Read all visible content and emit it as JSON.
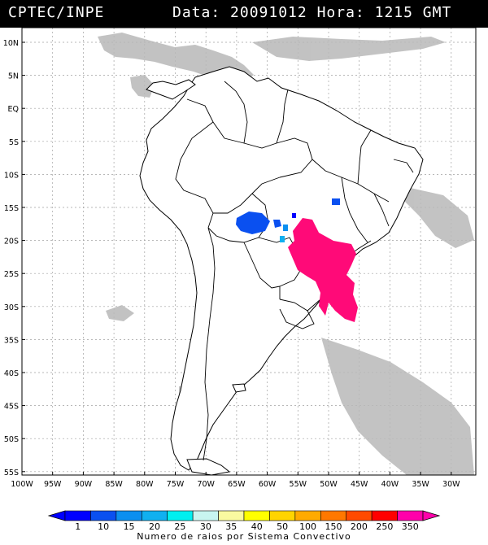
{
  "header": {
    "source": "CPTEC/INPE",
    "date_label": "Data:",
    "date": "20091012",
    "time_label": "Hora:",
    "time": "1215 GMT"
  },
  "map": {
    "lat_labels": [
      "10N",
      "5N",
      "EQ",
      "5S",
      "10S",
      "15S",
      "20S",
      "25S",
      "30S",
      "35S",
      "40S",
      "45S",
      "50S",
      "55S"
    ],
    "lon_labels": [
      "100W",
      "95W",
      "90W",
      "85W",
      "80W",
      "75W",
      "70W",
      "65W",
      "60W",
      "55W",
      "50W",
      "45W",
      "40W",
      "35W",
      "30W"
    ]
  },
  "legend": {
    "ticks": [
      "1",
      "10",
      "15",
      "20",
      "25",
      "30",
      "35",
      "40",
      "50",
      "100",
      "150",
      "200",
      "250",
      "350"
    ],
    "colors": [
      "#0000ff",
      "#0a50f0",
      "#0c8ff0",
      "#10b0f0",
      "#00f0f0",
      "#c8f5f0",
      "#fafaa0",
      "#ffff00",
      "#ffd400",
      "#ffaa00",
      "#ff7800",
      "#ff4a00",
      "#ff0000",
      "#ff00aa"
    ],
    "caption": "Numero de raios por Sistema Convectivo"
  }
}
